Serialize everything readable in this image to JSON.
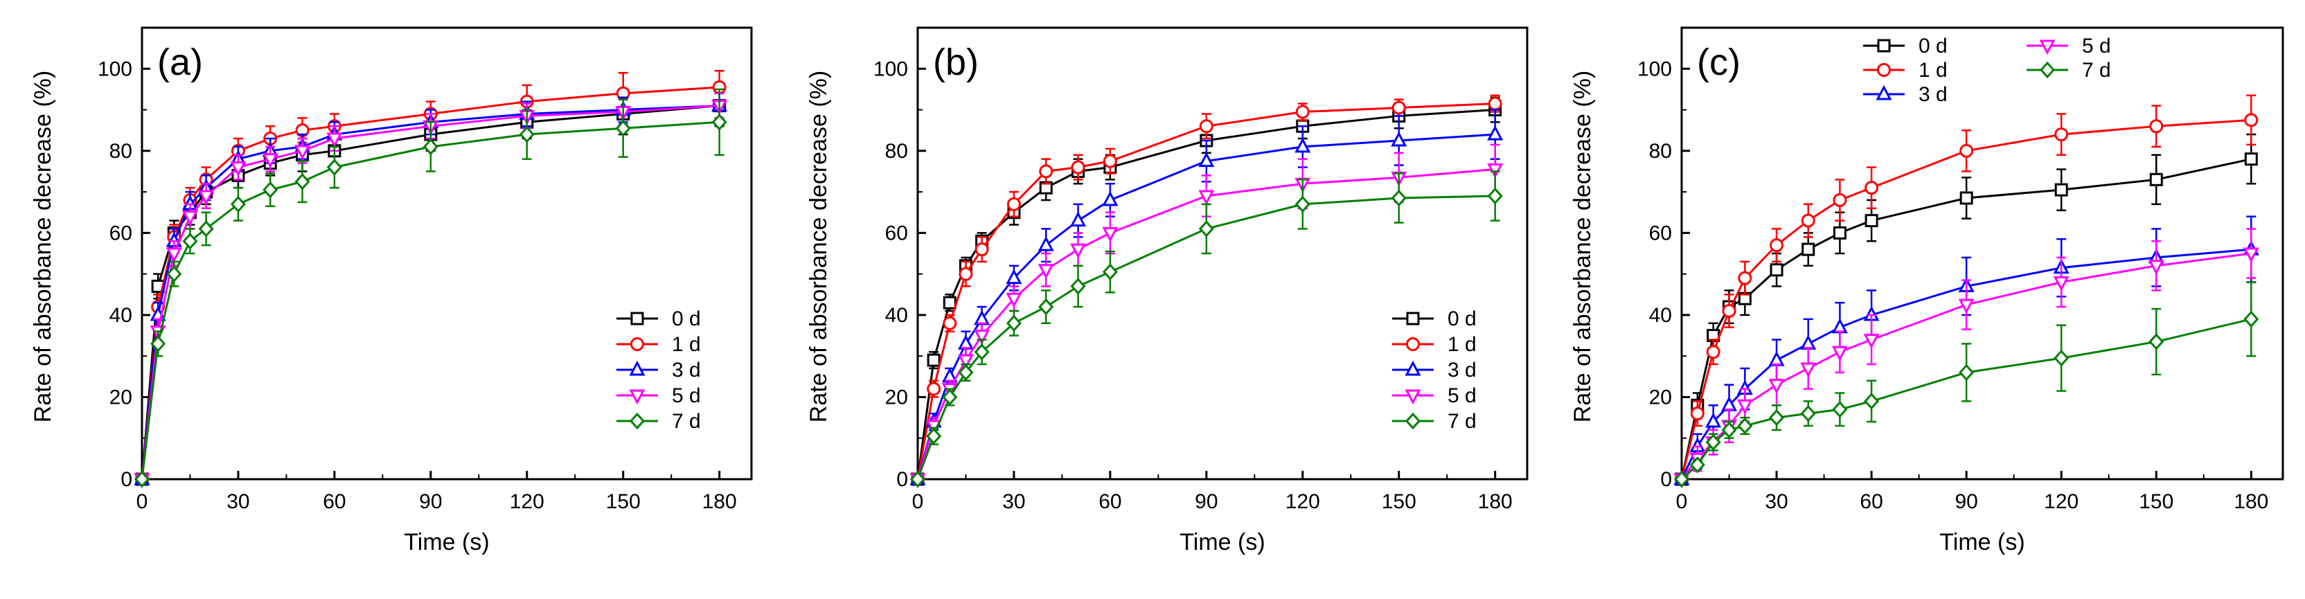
{
  "figure": {
    "colors": {
      "0 d": "#000000",
      "1 d": "#ff0000",
      "3 d": "#0000ff",
      "5 d": "#ff00ff",
      "7 d": "#008000"
    },
    "markers": {
      "0 d": "square",
      "1 d": "circle",
      "3 d": "triangle-up",
      "5 d": "triangle-down",
      "7 d": "diamond"
    }
  },
  "chart_data": [
    {
      "type": "line",
      "panel_label": "(a)",
      "xlabel": "Time (s)",
      "ylabel": "Rate of absorbance decrease (%)",
      "xlim": [
        0,
        190
      ],
      "ylim": [
        0,
        110
      ],
      "xticks": [
        0,
        30,
        60,
        90,
        120,
        150,
        180
      ],
      "yticks": [
        0,
        20,
        40,
        60,
        80,
        100
      ],
      "legend_position": "bottom-right",
      "legend_layout": "single-column",
      "x": [
        0,
        5,
        10,
        15,
        20,
        30,
        40,
        50,
        60,
        90,
        120,
        150,
        180
      ],
      "series": [
        {
          "name": "0 d",
          "values": [
            0,
            47,
            60,
            65,
            70,
            74,
            77,
            79,
            80,
            84,
            87,
            89,
            91
          ],
          "errors": [
            0,
            3,
            3,
            3,
            3,
            3,
            3,
            4,
            4,
            4,
            4,
            5,
            5
          ]
        },
        {
          "name": "1 d",
          "values": [
            0,
            42,
            59,
            68,
            73,
            80,
            83,
            85,
            86,
            89,
            92,
            94,
            95.5
          ],
          "errors": [
            0,
            3,
            3,
            3,
            3,
            3,
            3,
            3,
            3,
            3,
            4,
            5,
            4
          ]
        },
        {
          "name": "3 d",
          "values": [
            0,
            40,
            58,
            67,
            71,
            78,
            80,
            81,
            84,
            87,
            89,
            90,
            91
          ],
          "errors": [
            0,
            3,
            3,
            3,
            3,
            3,
            3,
            3,
            3,
            3,
            3,
            3,
            3
          ]
        },
        {
          "name": "5 d",
          "values": [
            0,
            36,
            55,
            64,
            69,
            76,
            78,
            80,
            83,
            86,
            88.5,
            89.5,
            91
          ],
          "errors": [
            0,
            3,
            3,
            3,
            3,
            3,
            3,
            3,
            3,
            3,
            3,
            3,
            3
          ]
        },
        {
          "name": "7 d",
          "values": [
            0,
            33,
            50,
            58,
            61,
            67,
            70.5,
            72.5,
            76,
            81,
            84,
            85.5,
            87
          ],
          "errors": [
            0,
            3,
            3,
            3,
            4,
            4,
            4,
            5,
            5,
            6,
            6,
            7,
            8
          ]
        }
      ]
    },
    {
      "type": "line",
      "panel_label": "(b)",
      "xlabel": "Time (s)",
      "ylabel": "Rate of absorbance decrease (%)",
      "xlim": [
        0,
        190
      ],
      "ylim": [
        0,
        110
      ],
      "xticks": [
        0,
        30,
        60,
        90,
        120,
        150,
        180
      ],
      "yticks": [
        0,
        20,
        40,
        60,
        80,
        100
      ],
      "legend_position": "bottom-right",
      "legend_layout": "single-column",
      "x": [
        0,
        5,
        10,
        15,
        20,
        30,
        40,
        50,
        60,
        90,
        120,
        150,
        180
      ],
      "series": [
        {
          "name": "0 d",
          "values": [
            0,
            29,
            43,
            52,
            58,
            65,
            71,
            75,
            76,
            82.5,
            86,
            88.5,
            90
          ],
          "errors": [
            0,
            2,
            2,
            2,
            2,
            3,
            3,
            3,
            3,
            3,
            3,
            3,
            3
          ]
        },
        {
          "name": "1 d",
          "values": [
            0,
            22,
            38,
            50,
            56,
            67,
            75,
            76,
            77.5,
            86,
            89.5,
            90.5,
            91.5
          ],
          "errors": [
            0,
            2,
            2,
            3,
            3,
            3,
            3,
            3,
            3,
            3,
            2,
            2,
            2
          ]
        },
        {
          "name": "3 d",
          "values": [
            0,
            14,
            25,
            33,
            39,
            49,
            57,
            63,
            68,
            77.5,
            81,
            82.5,
            84
          ],
          "errors": [
            0,
            2,
            2,
            3,
            3,
            3,
            4,
            4,
            4,
            5,
            5,
            6,
            6
          ]
        },
        {
          "name": "5 d",
          "values": [
            0,
            13,
            22,
            29,
            35,
            44,
            51,
            56,
            60,
            69,
            72,
            73.5,
            75.5
          ],
          "errors": [
            0,
            2,
            2,
            3,
            3,
            3,
            4,
            4,
            5,
            5,
            6,
            6,
            6
          ]
        },
        {
          "name": "7 d",
          "values": [
            0,
            10.5,
            20,
            26,
            31,
            38,
            42,
            47,
            50.5,
            61,
            67,
            68.5,
            69
          ],
          "errors": [
            0,
            2,
            2,
            2,
            3,
            3,
            4,
            5,
            5,
            6,
            6,
            6,
            6
          ]
        }
      ]
    },
    {
      "type": "line",
      "panel_label": "(c)",
      "xlabel": "Time (s)",
      "ylabel": "Rate of absorbance decrease (%)",
      "xlim": [
        0,
        190
      ],
      "ylim": [
        0,
        110
      ],
      "xticks": [
        0,
        30,
        60,
        90,
        120,
        150,
        180
      ],
      "yticks": [
        0,
        20,
        40,
        60,
        80,
        100
      ],
      "legend_position": "top",
      "legend_layout": "two-column",
      "x": [
        0,
        5,
        10,
        15,
        20,
        30,
        40,
        50,
        60,
        90,
        120,
        150,
        180
      ],
      "series": [
        {
          "name": "0 d",
          "values": [
            0,
            18,
            35,
            42,
            44,
            51,
            56,
            60,
            63,
            68.5,
            70.5,
            73,
            78
          ],
          "errors": [
            0,
            3,
            3,
            4,
            4,
            4,
            4,
            5,
            5,
            5,
            5,
            6,
            6
          ]
        },
        {
          "name": "1 d",
          "values": [
            0,
            16,
            31,
            41,
            49,
            57,
            63,
            68,
            71,
            80,
            84,
            86,
            87.5
          ],
          "errors": [
            0,
            3,
            3,
            4,
            4,
            4,
            4,
            5,
            5,
            5,
            5,
            5,
            6
          ]
        },
        {
          "name": "3 d",
          "values": [
            0,
            8,
            14,
            18,
            22,
            29,
            33,
            37,
            40,
            47,
            51.5,
            54,
            56
          ],
          "errors": [
            0,
            3,
            4,
            5,
            5,
            5,
            6,
            6,
            6,
            7,
            7,
            7,
            8
          ]
        },
        {
          "name": "5 d",
          "values": [
            0,
            5,
            9,
            13,
            18,
            23,
            27,
            31,
            34,
            42.5,
            48,
            52,
            55
          ],
          "errors": [
            0,
            3,
            3,
            4,
            4,
            5,
            5,
            5,
            6,
            6,
            6,
            6,
            6
          ]
        },
        {
          "name": "7 d",
          "values": [
            0,
            3.5,
            9,
            12,
            13,
            15,
            16,
            17,
            19,
            26,
            29.5,
            33.5,
            39
          ],
          "errors": [
            0,
            1,
            2,
            2,
            2,
            3,
            3,
            4,
            5,
            7,
            8,
            8,
            9
          ]
        }
      ]
    }
  ]
}
